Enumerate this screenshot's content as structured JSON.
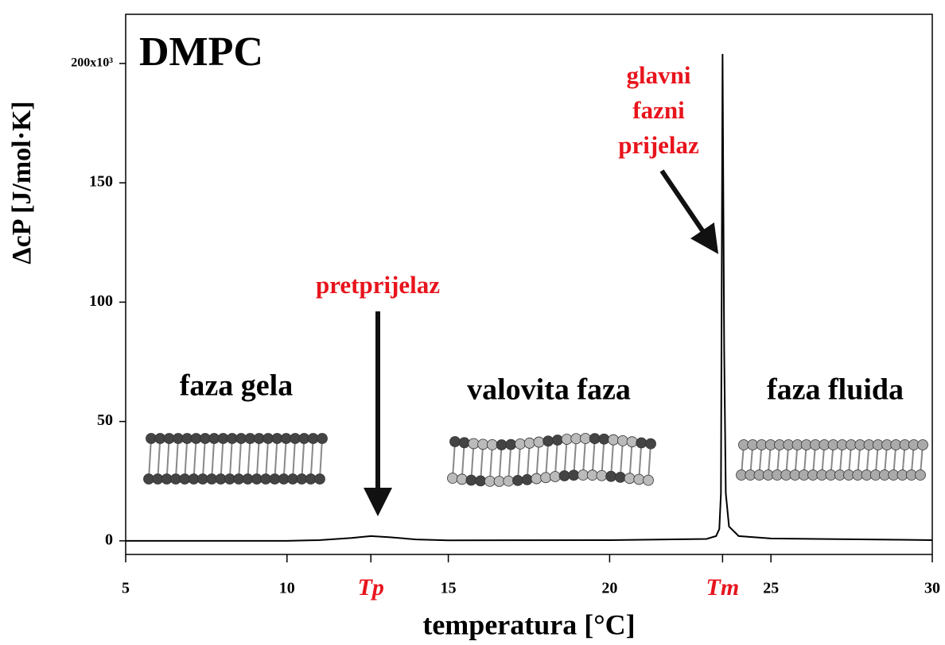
{
  "chart_data": {
    "type": "line",
    "title": "DMPC",
    "xlabel": "temperatura [°C]",
    "ylabel": "ΔcP [J/mol·K]",
    "x": [
      5,
      10,
      11,
      12,
      12.6,
      13.2,
      14,
      15,
      20,
      23,
      23.3,
      23.4,
      23.45,
      23.5,
      23.55,
      23.6,
      23.7,
      24,
      25,
      30
    ],
    "values": [
      0,
      0,
      0.3,
      1.2,
      2,
      1.5,
      0.6,
      0.2,
      0.3,
      0.8,
      2,
      5,
      20,
      204,
      80,
      20,
      6,
      2,
      1,
      0.3
    ],
    "color": "#000000",
    "xlim": [
      5,
      30
    ],
    "ylim": [
      -5.7,
      220.6
    ],
    "xticks": [
      5,
      10,
      {
        "value": 12.6,
        "label": "Tp",
        "color": "#e8141c"
      },
      15,
      20,
      {
        "value": 23.5,
        "label": "Tm",
        "color": "#e8141c"
      },
      25,
      30
    ],
    "yticks": [
      0,
      50,
      100,
      150,
      {
        "value": 200,
        "label": "200x10³"
      }
    ],
    "annotations": [
      {
        "text": "pretprijelaz",
        "color": "#e8141c"
      },
      {
        "lines": [
          "glavni",
          "fazni",
          "prijelaz"
        ],
        "color": "#e8141c"
      },
      {
        "text": "faza gela",
        "color": "#000000"
      },
      {
        "text": "valovita faza",
        "color": "#000000"
      },
      {
        "text": "faza fluida",
        "color": "#000000"
      }
    ]
  }
}
